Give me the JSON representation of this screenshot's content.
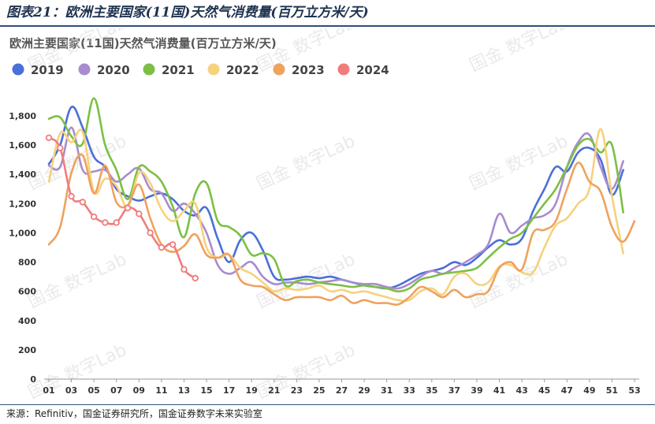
{
  "header": {
    "title": "图表21：欧洲主要国家(11国)天然气消费量(百万立方米/天)"
  },
  "footer": {
    "source": "来源：Refinitiv，国金证券研究所，国金证券数字未来实验室"
  },
  "watermark": {
    "text": "国金 数字Lab"
  },
  "colors": {
    "header": "#1f3350",
    "rule": "#2f4f78",
    "2019": "#4a6fd8",
    "2020": "#a98bcf",
    "2021": "#7cbf44",
    "2022": "#f6d27c",
    "2023": "#eea25e",
    "2024": "#f07c7c"
  },
  "chart_data": {
    "type": "line",
    "title": "欧洲主要国家(11国)天然气消费量(百万立方米/天)",
    "xlabel": "",
    "ylabel": "",
    "xlim": [
      1,
      53
    ],
    "ylim": [
      0,
      1800
    ],
    "x_ticks": [
      "01",
      "03",
      "05",
      "07",
      "09",
      "11",
      "13",
      "15",
      "17",
      "19",
      "21",
      "23",
      "25",
      "27",
      "29",
      "31",
      "33",
      "35",
      "37",
      "39",
      "41",
      "43",
      "45",
      "47",
      "49",
      "51",
      "53"
    ],
    "y_ticks": [
      0,
      200,
      400,
      600,
      800,
      1000,
      1200,
      1400,
      1600,
      1800
    ],
    "y_tick_labels": [
      "0",
      "200",
      "400",
      "600",
      "800",
      "1,000",
      "1,200",
      "1,400",
      "1,600",
      "1,800"
    ],
    "legend_position": "top-left",
    "grid": false,
    "series": [
      {
        "name": "2019",
        "color": "#4a6fd8",
        "markers": false,
        "x": [
          1,
          2,
          3,
          4,
          5,
          6,
          7,
          8,
          9,
          10,
          11,
          12,
          13,
          14,
          15,
          16,
          17,
          18,
          19,
          20,
          21,
          22,
          23,
          24,
          25,
          26,
          27,
          28,
          29,
          30,
          31,
          32,
          33,
          34,
          35,
          36,
          37,
          38,
          39,
          40,
          41,
          42,
          43,
          44,
          45,
          46,
          47,
          48,
          49,
          50,
          51,
          52
        ],
        "values": [
          1470,
          1600,
          1860,
          1720,
          1520,
          1450,
          1300,
          1250,
          1220,
          1250,
          1270,
          1230,
          1150,
          1120,
          1170,
          960,
          800,
          950,
          1000,
          880,
          700,
          680,
          690,
          700,
          690,
          700,
          680,
          660,
          640,
          630,
          620,
          640,
          680,
          720,
          740,
          760,
          800,
          780,
          830,
          900,
          950,
          920,
          960,
          1150,
          1300,
          1450,
          1420,
          1550,
          1580,
          1500,
          1260,
          1430
        ]
      },
      {
        "name": "2020",
        "color": "#a98bcf",
        "markers": false,
        "x": [
          1,
          2,
          3,
          4,
          5,
          6,
          7,
          8,
          9,
          10,
          11,
          12,
          13,
          14,
          15,
          16,
          17,
          18,
          19,
          20,
          21,
          22,
          23,
          24,
          25,
          26,
          27,
          28,
          29,
          30,
          31,
          32,
          33,
          34,
          35,
          36,
          37,
          38,
          39,
          40,
          41,
          42,
          43,
          44,
          45,
          46,
          47,
          48,
          49,
          50,
          51,
          52
        ],
        "values": [
          1460,
          1450,
          1720,
          1430,
          1420,
          1430,
          1350,
          1400,
          1440,
          1300,
          1270,
          1150,
          1200,
          1130,
          1000,
          780,
          720,
          760,
          800,
          700,
          650,
          660,
          660,
          650,
          660,
          670,
          680,
          660,
          650,
          650,
          630,
          620,
          650,
          700,
          740,
          720,
          760,
          800,
          850,
          920,
          1130,
          1000,
          1050,
          1100,
          1120,
          1200,
          1450,
          1620,
          1670,
          1450,
          1300,
          1490
        ]
      },
      {
        "name": "2021",
        "color": "#7cbf44",
        "markers": false,
        "x": [
          1,
          2,
          3,
          4,
          5,
          6,
          7,
          8,
          9,
          10,
          11,
          12,
          13,
          14,
          15,
          16,
          17,
          18,
          19,
          20,
          21,
          22,
          23,
          24,
          25,
          26,
          27,
          28,
          29,
          30,
          31,
          32,
          33,
          34,
          35,
          36,
          37,
          38,
          39,
          40,
          41,
          42,
          43,
          44,
          45,
          46,
          47,
          48,
          49,
          50,
          51,
          52
        ],
        "values": [
          1780,
          1790,
          1660,
          1610,
          1920,
          1600,
          1430,
          1230,
          1450,
          1420,
          1350,
          1180,
          970,
          1270,
          1340,
          1080,
          1040,
          980,
          850,
          860,
          820,
          640,
          670,
          680,
          660,
          650,
          640,
          630,
          640,
          630,
          620,
          600,
          620,
          680,
          700,
          720,
          730,
          740,
          760,
          830,
          900,
          960,
          1000,
          1100,
          1200,
          1300,
          1450,
          1600,
          1640,
          1550,
          1600,
          1140
        ]
      },
      {
        "name": "2022",
        "color": "#f6d27c",
        "markers": false,
        "x": [
          1,
          2,
          3,
          4,
          5,
          6,
          7,
          8,
          9,
          10,
          11,
          12,
          13,
          14,
          15,
          16,
          17,
          18,
          19,
          20,
          21,
          22,
          23,
          24,
          25,
          26,
          27,
          28,
          29,
          30,
          31,
          32,
          33,
          34,
          35,
          36,
          37,
          38,
          39,
          40,
          41,
          42,
          43,
          44,
          45,
          46,
          47,
          48,
          49,
          50,
          51,
          52
        ],
        "values": [
          1350,
          1680,
          1620,
          1690,
          1280,
          1370,
          1320,
          1180,
          1410,
          1340,
          1160,
          1080,
          1150,
          1200,
          900,
          830,
          850,
          760,
          720,
          660,
          600,
          620,
          610,
          620,
          640,
          600,
          610,
          590,
          600,
          580,
          560,
          540,
          540,
          600,
          620,
          580,
          700,
          720,
          650,
          660,
          770,
          780,
          730,
          730,
          900,
          1050,
          1100,
          1200,
          1300,
          1710,
          1250,
          860
        ]
      },
      {
        "name": "2023",
        "color": "#eea25e",
        "markers": false,
        "x": [
          1,
          2,
          3,
          4,
          5,
          6,
          7,
          8,
          9,
          10,
          11,
          12,
          13,
          14,
          15,
          16,
          17,
          18,
          19,
          20,
          21,
          22,
          23,
          24,
          25,
          26,
          27,
          28,
          29,
          30,
          31,
          32,
          33,
          34,
          35,
          36,
          37,
          38,
          39,
          40,
          41,
          42,
          43,
          44,
          45,
          46,
          47,
          48,
          49,
          50,
          51,
          52,
          53
        ],
        "values": [
          920,
          1040,
          1410,
          1530,
          1270,
          1460,
          1210,
          1190,
          1330,
          1100,
          920,
          870,
          910,
          990,
          850,
          830,
          850,
          680,
          640,
          630,
          580,
          540,
          560,
          560,
          560,
          540,
          570,
          520,
          540,
          520,
          520,
          510,
          560,
          630,
          600,
          560,
          610,
          560,
          580,
          600,
          760,
          800,
          750,
          1000,
          1020,
          1080,
          1300,
          1480,
          1350,
          1280,
          1040,
          940,
          1080
        ]
      },
      {
        "name": "2024",
        "color": "#f07c7c",
        "markers": true,
        "x": [
          1,
          2,
          3,
          4,
          5,
          6,
          7,
          8,
          9,
          10,
          11,
          12,
          13,
          14
        ],
        "values": [
          1650,
          1580,
          1250,
          1210,
          1110,
          1070,
          1070,
          1170,
          1130,
          1000,
          900,
          920,
          750,
          690
        ]
      }
    ]
  }
}
